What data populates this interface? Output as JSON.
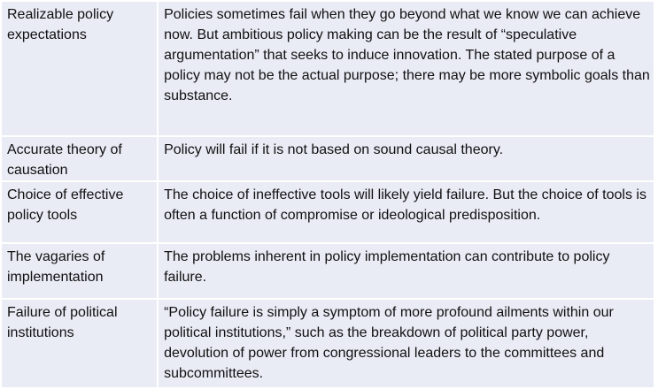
{
  "rows": [
    {
      "term": "Realizable policy expectations",
      "description": "Policies sometimes fail when they go beyond what we know we can achieve now. But ambitious policy making can be the result of “speculative argumentation” that seeks to induce innovation. The stated purpose of a policy may not be the actual purpose; there may be more symbolic goals than substance."
    },
    {
      "term": "Accurate theory of causation",
      "description": "Policy will fail if it is not based on sound causal theory."
    },
    {
      "term": "Choice of effective policy tools",
      "description": "The choice of ineffective tools will likely yield failure. But the choice of tools is often a function of compromise or ideological predisposition."
    },
    {
      "term": "The vagaries of implementation",
      "description": "The problems inherent in policy implementation can contribute to policy failure."
    },
    {
      "term": "Failure of political institutions",
      "description": "“Policy failure is simply a symptom of more profound ailments within our political institutions,” such as the breakdown of political party power, devolution of power from congressional leaders to the committees and subcommittees."
    }
  ]
}
